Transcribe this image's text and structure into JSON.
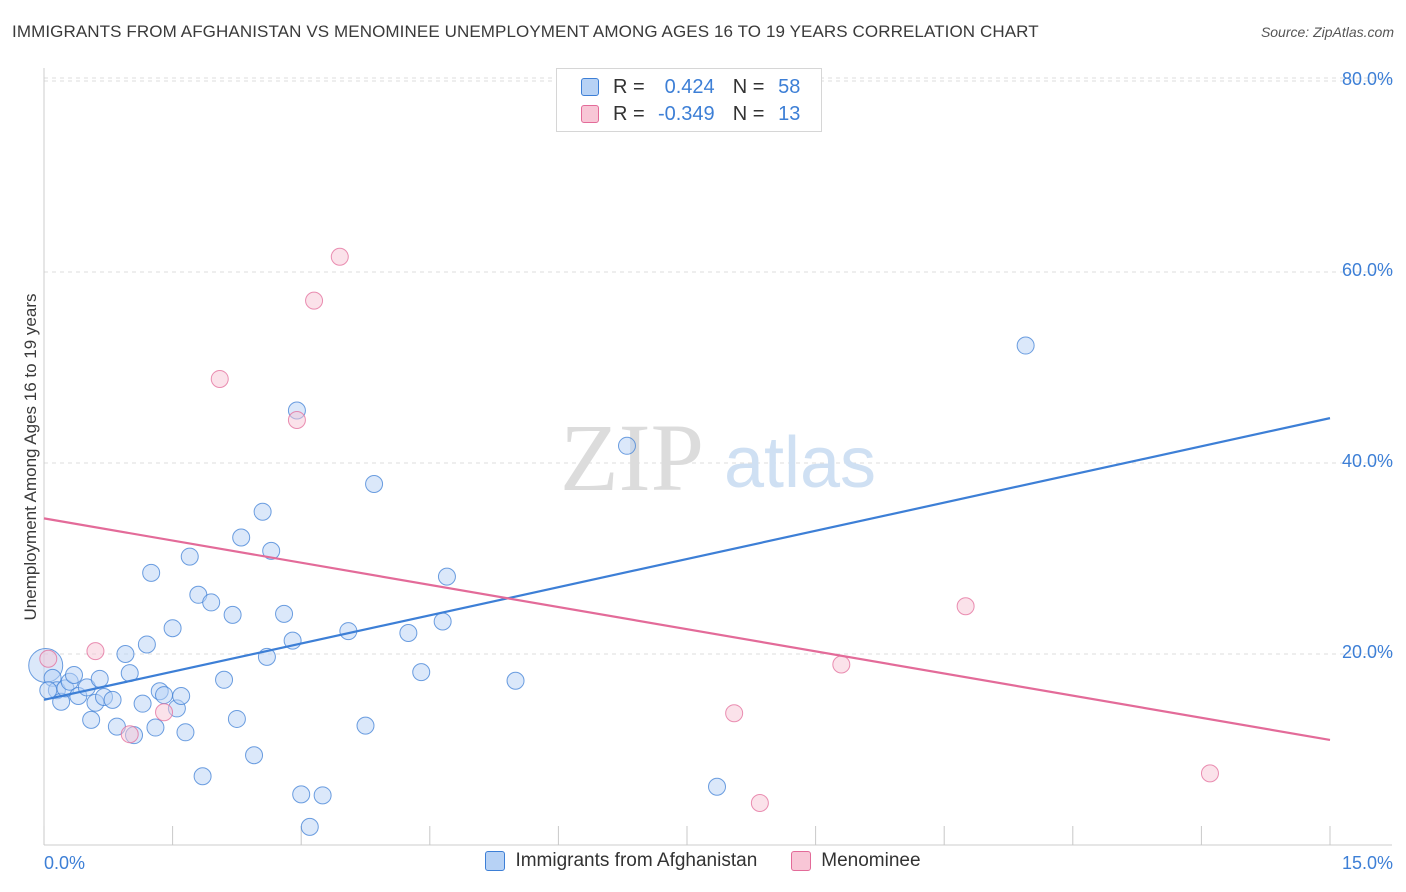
{
  "title": "IMMIGRANTS FROM AFGHANISTAN VS MENOMINEE UNEMPLOYMENT AMONG AGES 16 TO 19 YEARS CORRELATION CHART",
  "source": "Source: ZipAtlas.com",
  "watermark": {
    "zip": "ZIP",
    "atlas": "atlas"
  },
  "legend": {
    "r_label": "R =",
    "n_label": "N =",
    "series": [
      {
        "r": "0.424",
        "n": "58",
        "color": "#3d7fd6",
        "fill": "#b7d2f5"
      },
      {
        "r": "-0.349",
        "n": "13",
        "color": "#e36b99",
        "fill": "#f8c6d6"
      }
    ]
  },
  "bottom_legend": [
    {
      "label": "Immigrants from Afghanistan"
    },
    {
      "label": "Menominee"
    }
  ],
  "chart_data": {
    "type": "scatter",
    "ylabel": "Unemployment Among Ages 16 to 19 years",
    "xlim": [
      0,
      15
    ],
    "ylim": [
      0,
      80
    ],
    "x_tick_labels": [
      {
        "value": 0,
        "label": "0.0%"
      },
      {
        "value": 15,
        "label": "15.0%"
      }
    ],
    "y_tick_labels": [
      {
        "value": 20,
        "label": "20.0%"
      },
      {
        "value": 40,
        "label": "40.0%"
      },
      {
        "value": 60,
        "label": "60.0%"
      },
      {
        "value": 80,
        "label": "80.0%"
      }
    ],
    "grid": "horizontal dashed",
    "series": [
      {
        "color": "#3d7fd6",
        "fill": "#b7d2f5",
        "points": [
          [
            0.02,
            18.8
          ],
          [
            0.1,
            17.5
          ],
          [
            0.15,
            16.2
          ],
          [
            0.2,
            15.0
          ],
          [
            0.25,
            16.4
          ],
          [
            0.3,
            17.1
          ],
          [
            0.35,
            17.8
          ],
          [
            0.4,
            15.6
          ],
          [
            0.5,
            16.5
          ],
          [
            0.55,
            13.1
          ],
          [
            0.6,
            14.9
          ],
          [
            0.65,
            17.4
          ],
          [
            0.7,
            15.5
          ],
          [
            0.8,
            15.2
          ],
          [
            0.85,
            12.4
          ],
          [
            0.95,
            20.0
          ],
          [
            1.0,
            18.0
          ],
          [
            1.05,
            11.5
          ],
          [
            1.15,
            14.8
          ],
          [
            1.2,
            21.0
          ],
          [
            1.25,
            28.5
          ],
          [
            1.3,
            12.3
          ],
          [
            1.35,
            16.1
          ],
          [
            1.4,
            15.7
          ],
          [
            1.5,
            22.7
          ],
          [
            1.55,
            14.3
          ],
          [
            1.6,
            15.6
          ],
          [
            1.65,
            11.8
          ],
          [
            1.7,
            30.2
          ],
          [
            1.8,
            26.2
          ],
          [
            1.85,
            7.2
          ],
          [
            1.95,
            25.4
          ],
          [
            2.1,
            17.3
          ],
          [
            2.2,
            24.1
          ],
          [
            2.25,
            13.2
          ],
          [
            2.3,
            32.2
          ],
          [
            2.45,
            9.4
          ],
          [
            2.55,
            34.9
          ],
          [
            2.6,
            19.7
          ],
          [
            2.65,
            30.8
          ],
          [
            2.8,
            24.2
          ],
          [
            2.9,
            21.4
          ],
          [
            2.95,
            45.5
          ],
          [
            3.0,
            5.3
          ],
          [
            3.1,
            1.9
          ],
          [
            3.25,
            5.2
          ],
          [
            3.55,
            22.4
          ],
          [
            3.75,
            12.5
          ],
          [
            3.85,
            37.8
          ],
          [
            4.25,
            22.2
          ],
          [
            4.4,
            18.1
          ],
          [
            4.65,
            23.4
          ],
          [
            4.7,
            28.1
          ],
          [
            5.5,
            17.2
          ],
          [
            6.8,
            41.8
          ],
          [
            7.85,
            6.1
          ],
          [
            11.45,
            52.3
          ],
          [
            0.05,
            16.2
          ]
        ]
      },
      {
        "color": "#e36b99",
        "fill": "#f8c6d6",
        "points": [
          [
            0.05,
            19.5
          ],
          [
            0.6,
            20.3
          ],
          [
            1.0,
            11.6
          ],
          [
            1.4,
            13.9
          ],
          [
            2.05,
            48.8
          ],
          [
            2.95,
            44.5
          ],
          [
            3.15,
            57.0
          ],
          [
            3.45,
            61.6
          ],
          [
            8.05,
            13.8
          ],
          [
            8.35,
            4.4
          ],
          [
            9.3,
            18.9
          ],
          [
            10.75,
            25.0
          ],
          [
            13.6,
            7.5
          ]
        ]
      }
    ],
    "trendlines": [
      {
        "x": [
          0,
          15
        ],
        "y": [
          15.2,
          44.7
        ],
        "color": "#3d7fd6"
      },
      {
        "x": [
          0,
          15
        ],
        "y": [
          34.2,
          11.0
        ],
        "color": "#e36b99"
      }
    ]
  }
}
